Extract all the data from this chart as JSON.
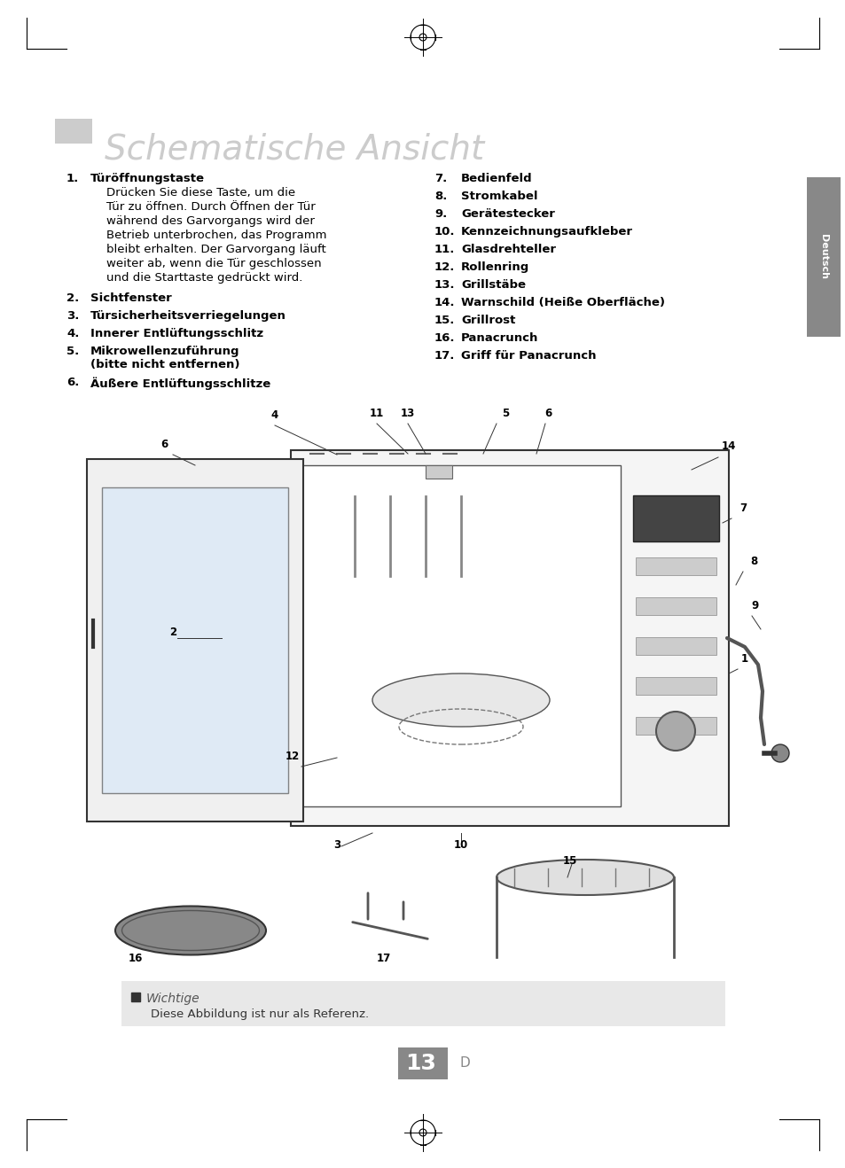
{
  "title": "Schematische Ansicht",
  "bg_color": "#ffffff",
  "page_border_color": "#000000",
  "title_color": "#cccccc",
  "title_rect_color": "#cccccc",
  "sidebar_color": "#888888",
  "sidebar_text": "Deutsch",
  "page_number": "13",
  "page_letter": "D",
  "note_bg": "#e8e8e8",
  "note_title": "Wichtige",
  "note_text": "Diese Abbildung ist nur als Referenz.",
  "left_items": [
    {
      "num": "1.",
      "bold": "Türöffnungstaste",
      "text": "Drücken Sie diese Taste, um die\nTür zu öffnen. Durch Öffnen der Tür\nwährend des Garvorgangs wird der\nBetrieb unterbrochen, das Programm\nbleibt erhalten. Der Garvorgang läuft\nweiter ab, wenn die Tür geschlossen\nund die Starttaste gedrückt wird."
    },
    {
      "num": "2.",
      "bold": "Sichtfenster",
      "text": ""
    },
    {
      "num": "3.",
      "bold": "Türsicherheitsverriegelungen",
      "text": ""
    },
    {
      "num": "4.",
      "bold": "Innerer Entlüftungsschlitz",
      "text": ""
    },
    {
      "num": "5.",
      "bold": "Mikrowellenzuführung\n(bitte nicht entfernen)",
      "text": ""
    },
    {
      "num": "6.",
      "bold": "Äußere Entlüftungsschlitze",
      "text": ""
    }
  ],
  "right_items": [
    {
      "num": "7.",
      "bold": "Bedienfeld"
    },
    {
      "num": "8.",
      "bold": "Stromkabel"
    },
    {
      "num": "9.",
      "bold": "Gerätestecker"
    },
    {
      "num": "10.",
      "bold": "Kennzeichnungsaufkleber"
    },
    {
      "num": "11.",
      "bold": "Glasdrehteller"
    },
    {
      "num": "12.",
      "bold": "Rollenring"
    },
    {
      "num": "13.",
      "bold": "Grillstäbe"
    },
    {
      "num": "14.",
      "bold": "Warnschild (Heiße Oberfläche)"
    },
    {
      "num": "15.",
      "bold": "Grillrost"
    },
    {
      "num": "16.",
      "bold": "Panacrunch"
    },
    {
      "num": "17.",
      "bold": "Griff für Panacrunch"
    }
  ]
}
